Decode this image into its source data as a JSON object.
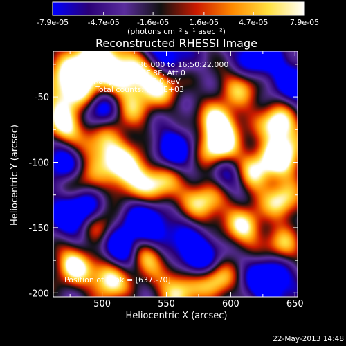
{
  "chart_data": {
    "type": "heatmap",
    "title": "Reconstructed RHESSI Image",
    "xlabel": "Heliocentric X (arcsec)",
    "ylabel": "Heliocentric Y (arcsec)",
    "xlim": [
      462,
      652
    ],
    "ylim": [
      -203,
      -15
    ],
    "x_ticks": [
      500,
      550,
      600,
      650
    ],
    "y_ticks": [
      -50,
      -100,
      -150,
      -200
    ],
    "colorbar": {
      "range": [
        -7.9e-05,
        7.9e-05
      ],
      "tick_labels": [
        "-7.9e-05",
        "-4.7e-05",
        "-1.6e-05",
        "1.6e-05",
        "4.7e-05",
        "7.9e-05"
      ],
      "unit_label": "(photons cm⁻² s⁻¹ asec⁻²)",
      "colormap": [
        "#0000ff",
        "#2a0077",
        "#5a2d9c",
        "#111111",
        "#cc1a00",
        "#ff8a00",
        "#ffe040",
        "#ffffff"
      ]
    },
    "info_lines": [
      "1-Apr-2003 16:44:36.000 to 16:50:22.000",
      "Detectors: 4F 5F 6F 7F 8F, Att 0",
      "Energy Range: 12.0 - 25.0 keV",
      "Clean    Total counts: 3.31E+03"
    ],
    "peak_label": "Position of Peak = [637,-70]",
    "peak_position": [
      637,
      -70
    ],
    "sources": [
      [
        474,
        -42,
        1.0,
        14
      ],
      [
        495,
        -22,
        1.0,
        15
      ],
      [
        525,
        -30,
        0.9,
        14
      ],
      [
        545,
        -38,
        0.9,
        12
      ],
      [
        610,
        -40,
        0.8,
        13
      ],
      [
        470,
        -72,
        0.9,
        10
      ],
      [
        500,
        -90,
        0.8,
        13
      ],
      [
        520,
        -108,
        0.9,
        13
      ],
      [
        545,
        -118,
        0.8,
        12
      ],
      [
        590,
        -70,
        1.0,
        10
      ],
      [
        590,
        -88,
        1.0,
        11
      ],
      [
        637,
        -70,
        1.0,
        10
      ],
      [
        640,
        -95,
        1.0,
        12
      ],
      [
        615,
        -108,
        0.9,
        12
      ],
      [
        580,
        -130,
        0.8,
        12
      ],
      [
        498,
        -150,
        0.8,
        10
      ],
      [
        478,
        -178,
        1.0,
        10
      ],
      [
        505,
        -190,
        1.0,
        10
      ],
      [
        535,
        -170,
        0.9,
        10
      ],
      [
        560,
        -195,
        0.9,
        12
      ],
      [
        590,
        -190,
        0.8,
        10
      ],
      [
        610,
        -150,
        0.8,
        11
      ],
      [
        640,
        -130,
        0.8,
        10
      ],
      [
        640,
        -165,
        0.7,
        10
      ],
      [
        520,
        -60,
        0.5,
        12
      ],
      [
        480,
        -115,
        0.6,
        10
      ],
      [
        546,
        -20,
        -1.0,
        14
      ],
      [
        620,
        -22,
        -1.0,
        14
      ],
      [
        480,
        -138,
        -1.0,
        14
      ],
      [
        535,
        -148,
        -1.0,
        14
      ],
      [
        572,
        -170,
        -1.0,
        13
      ],
      [
        630,
        -190,
        -1.0,
        13
      ],
      [
        600,
        -110,
        -0.8,
        11
      ],
      [
        470,
        -100,
        -0.8,
        11
      ],
      [
        555,
        -90,
        -0.8,
        12
      ],
      [
        512,
        -165,
        -0.9,
        10
      ],
      [
        650,
        -40,
        -0.7,
        12
      ],
      [
        500,
        -60,
        -0.8,
        10
      ]
    ]
  },
  "footer": {
    "timestamp": "22-May-2013 14:48"
  }
}
